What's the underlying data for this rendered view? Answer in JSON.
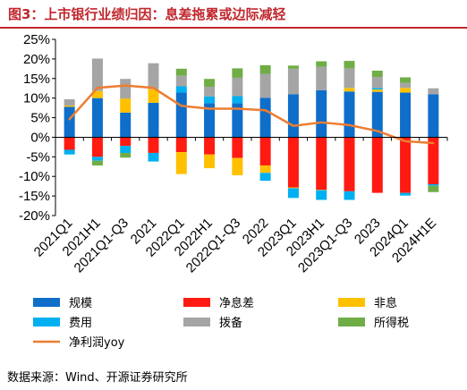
{
  "page": {
    "title": "图3：上市银行业绩归因：息差拖累或边际减轻",
    "source": "数据来源：Wind、开源证券研究所"
  },
  "colors": {
    "title": "#c0272d",
    "规模": "#0f6ec9",
    "净息差": "#ff1a12",
    "非息": "#ffc000",
    "费用": "#00b0f0",
    "拨备": "#a5a5a5",
    "所得税": "#70ad47",
    "净利润yoy": "#ed7d31"
  },
  "chart_data": {
    "type": "bar",
    "stacked": true,
    "title": "",
    "xlabel": "",
    "ylabel": "",
    "ylim": [
      -20,
      25
    ],
    "yticks": [
      "25%",
      "20%",
      "15%",
      "10%",
      "5%",
      "0%",
      "-5%",
      "-10%",
      "-15%",
      "-20%"
    ],
    "y_unit": "%",
    "grid": false,
    "legend_position": "bottom",
    "categories": [
      "2021Q1",
      "2021H1",
      "2021Q1-Q3",
      "2021",
      "2022Q1",
      "2022H1",
      "2022Q1-Q3",
      "2022",
      "2023Q1",
      "2023H1",
      "2023Q1-Q3",
      "2023",
      "2024Q1",
      "2024H1E"
    ],
    "series": [
      {
        "name": "规模",
        "kind": "bar",
        "values": [
          7.8,
          10.0,
          6.3,
          8.8,
          11.4,
          8.7,
          8.7,
          10.1,
          11.0,
          12.0,
          11.7,
          11.6,
          11.4,
          11.0
        ]
      },
      {
        "name": "净息差",
        "kind": "bar",
        "values": [
          -3.2,
          -5.0,
          -2.2,
          -4.0,
          -3.8,
          -4.4,
          -5.3,
          -7.2,
          -12.8,
          -13.4,
          -13.8,
          -14.2,
          -14.2,
          -12.0
        ]
      },
      {
        "name": "非息",
        "kind": "bar",
        "values": [
          0.3,
          1.8,
          3.6,
          3.5,
          -5.6,
          -3.5,
          -4.4,
          -1.9,
          -0.2,
          -0.1,
          0.9,
          0.6,
          1.2,
          0.0
        ]
      },
      {
        "name": "费用",
        "kind": "bar",
        "values": [
          -1.2,
          -1.0,
          -1.8,
          -2.2,
          1.6,
          1.7,
          1.8,
          -2.0,
          -2.5,
          -2.5,
          -2.2,
          0.4,
          -0.7,
          -0.4
        ]
      },
      {
        "name": "拨备",
        "kind": "bar",
        "values": [
          1.6,
          8.3,
          5.0,
          6.6,
          2.7,
          2.5,
          4.7,
          6.1,
          6.5,
          6.0,
          5.0,
          2.8,
          1.3,
          1.5
        ]
      },
      {
        "name": "所得税",
        "kind": "bar",
        "values": [
          0.0,
          -1.2,
          -1.2,
          0.0,
          1.8,
          2.0,
          2.4,
          2.2,
          0.8,
          1.4,
          1.9,
          1.6,
          1.4,
          -1.6
        ]
      },
      {
        "name": "净利润yoy",
        "kind": "line",
        "values": [
          4.6,
          12.6,
          13.2,
          12.6,
          8.0,
          7.3,
          7.3,
          6.9,
          2.9,
          3.8,
          3.1,
          1.6,
          -1.0,
          -1.5
        ]
      }
    ]
  }
}
